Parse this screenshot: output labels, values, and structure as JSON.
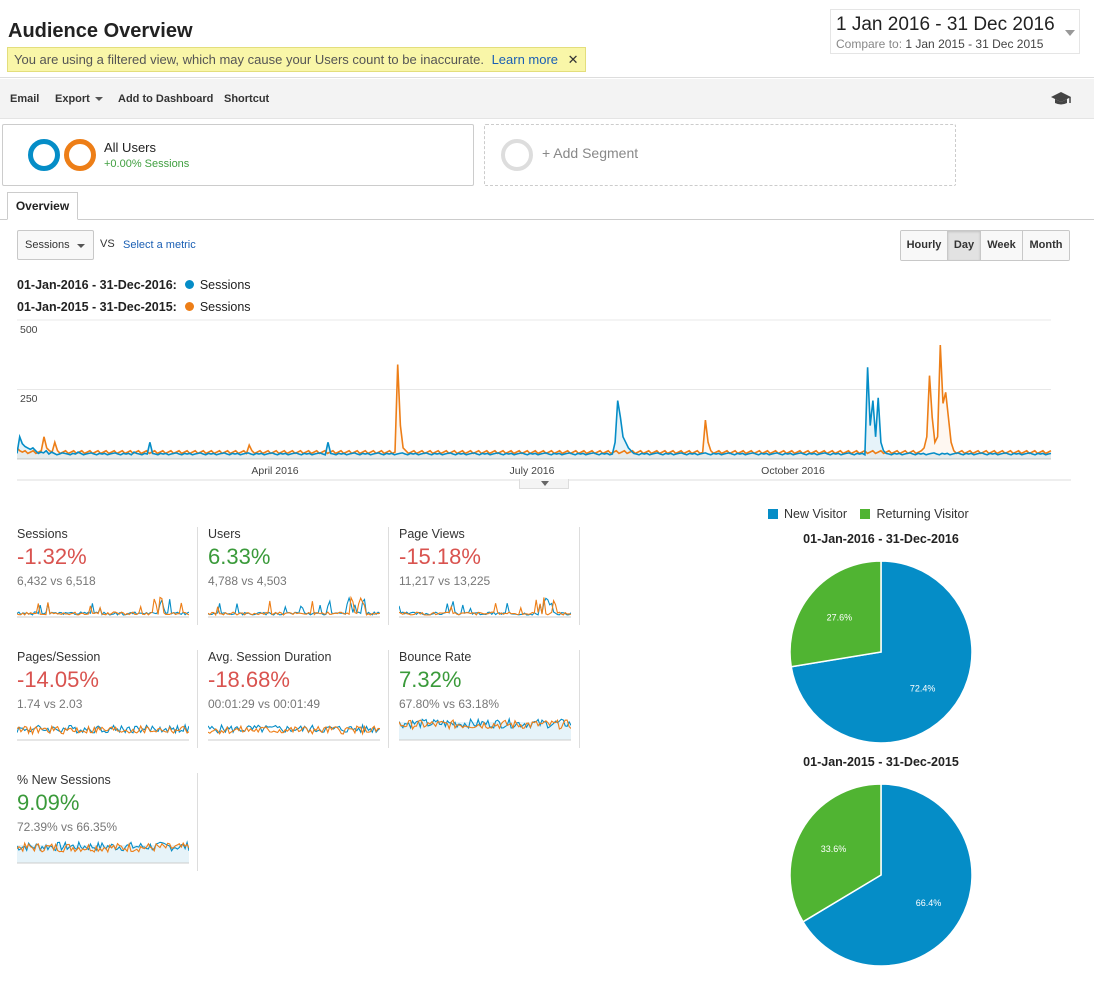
{
  "header": {
    "title": "Audience Overview",
    "warning_text": "You are using a filtered view, which may cause your Users count to be inaccurate.",
    "learn_more": "Learn more",
    "close": "✕",
    "date_range": "1 Jan 2016 - 31 Dec 2016",
    "compare_label": "Compare to:",
    "compare_range": "1 Jan 2015 - 31 Dec 2015"
  },
  "toolbar": {
    "email": "Email",
    "export": "Export",
    "add_to_dashboard": "Add to Dashboard",
    "shortcut": "Shortcut",
    "icon": "graduation-cap-icon"
  },
  "segments": {
    "all_users": "All Users",
    "all_users_sub": "+0.00% Sessions",
    "add_segment": "+ Add Segment"
  },
  "tabs": {
    "overview": "Overview"
  },
  "controls": {
    "metric": "Sessions",
    "vs": "VS",
    "select_metric": "Select a metric",
    "granularity": [
      "Hourly",
      "Day",
      "Week",
      "Month"
    ],
    "granularity_active": "Day"
  },
  "legend": [
    {
      "range": "01-Jan-2016 - 31-Dec-2016:",
      "metric": "Sessions",
      "color": "#058dc7"
    },
    {
      "range": "01-Jan-2015 - 31-Dec-2015:",
      "metric": "Sessions",
      "color": "#ed7e17"
    }
  ],
  "chart_data": [
    {
      "type": "line",
      "ylim": [
        0,
        500
      ],
      "y_ticks": [
        "500",
        "250"
      ],
      "x_ticks": [
        "April 2016",
        "July 2016",
        "October 2016"
      ],
      "series": [
        {
          "name": "01-Jan-2016 - 31-Dec-2016: Sessions",
          "color": "#058dc7",
          "values": [
            20,
            80,
            55,
            45,
            40,
            35,
            40,
            30,
            20,
            25,
            22,
            30,
            18,
            25,
            20,
            15,
            18,
            22,
            20,
            18,
            15,
            20,
            18,
            25,
            20,
            15,
            18,
            20,
            22,
            18,
            15,
            20,
            18,
            20,
            15,
            18,
            20,
            22,
            18,
            15,
            20,
            18,
            20,
            15,
            25,
            20,
            18,
            15,
            20,
            18,
            60,
            20,
            18,
            15,
            20,
            18,
            20,
            15,
            18,
            20,
            22,
            18,
            15,
            20,
            18,
            20,
            15,
            18,
            20,
            22,
            18,
            15,
            20,
            18,
            20,
            15,
            18,
            20,
            22,
            18,
            15,
            20,
            18,
            20,
            15,
            18,
            20,
            22,
            18,
            15,
            20,
            18,
            20,
            15,
            18,
            20,
            22,
            18,
            15,
            20,
            18,
            20,
            15,
            18,
            20,
            22,
            18,
            15,
            20,
            18,
            20,
            15,
            18,
            20,
            22,
            18,
            15,
            60,
            20,
            18,
            15,
            20,
            18,
            20,
            15,
            18,
            20,
            22,
            18,
            15,
            20,
            18,
            20,
            15,
            18,
            20,
            22,
            18,
            15,
            20,
            18,
            20,
            15,
            18,
            20,
            22,
            18,
            15,
            20,
            18,
            20,
            15,
            18,
            20,
            22,
            18,
            15,
            20,
            18,
            20,
            15,
            18,
            20,
            22,
            18,
            15,
            20,
            18,
            20,
            15,
            18,
            20,
            22,
            18,
            15,
            20,
            18,
            20,
            15,
            18,
            20,
            22,
            18,
            15,
            20,
            18,
            20,
            15,
            18,
            20,
            22,
            18,
            15,
            20,
            18,
            20,
            15,
            18,
            20,
            22,
            18,
            15,
            20,
            18,
            20,
            15,
            18,
            20,
            22,
            18,
            15,
            20,
            18,
            20,
            15,
            18,
            20,
            22,
            18,
            15,
            20,
            18,
            20,
            15,
            18,
            60,
            210,
            150,
            80,
            60,
            40,
            30,
            20,
            18,
            15,
            20,
            18,
            20,
            15,
            18,
            20,
            22,
            18,
            15,
            20,
            18,
            20,
            15,
            18,
            20,
            22,
            18,
            15,
            20,
            18,
            20,
            15,
            18,
            20,
            22,
            18,
            15,
            20,
            18,
            20,
            15,
            18,
            20,
            22,
            18,
            15,
            20,
            18,
            20,
            15,
            18,
            20,
            22,
            18,
            15,
            20,
            18,
            20,
            15,
            18,
            20,
            22,
            18,
            15,
            20,
            18,
            20,
            15,
            18,
            20,
            22,
            18,
            15,
            20,
            18,
            20,
            15,
            18,
            20,
            22,
            18,
            15,
            20,
            18,
            20,
            15,
            18,
            20,
            22,
            18,
            15,
            20,
            18,
            20,
            15,
            330,
            120,
            210,
            80,
            220,
            60,
            30,
            20,
            18,
            15,
            20,
            18,
            20,
            15,
            18,
            20,
            22,
            18,
            15,
            20,
            18,
            20,
            15,
            18,
            20,
            22,
            18,
            15,
            20,
            18,
            20,
            15,
            18,
            20,
            22,
            18,
            15,
            20,
            18,
            20,
            15,
            18,
            20,
            22,
            18,
            15,
            20,
            18,
            20,
            15,
            18,
            20,
            22,
            18,
            15,
            20,
            18,
            20,
            15,
            18,
            20,
            22,
            18,
            15,
            20,
            18,
            20,
            15,
            18,
            20
          ]
        },
        {
          "name": "01-Jan-2015 - 31-Dec-2015: Sessions",
          "color": "#ed7e17",
          "values": [
            40,
            30,
            25,
            30,
            20,
            25,
            30,
            20,
            25,
            30,
            80,
            40,
            30,
            25,
            60,
            30,
            20,
            25,
            30,
            20,
            25,
            30,
            20,
            25,
            30,
            20,
            25,
            30,
            20,
            25,
            30,
            20,
            25,
            30,
            20,
            25,
            30,
            20,
            25,
            30,
            20,
            25,
            30,
            20,
            25,
            30,
            20,
            25,
            30,
            20,
            25,
            30,
            20,
            25,
            30,
            20,
            25,
            30,
            20,
            25,
            30,
            20,
            25,
            30,
            20,
            25,
            30,
            20,
            25,
            30,
            20,
            25,
            30,
            20,
            25,
            30,
            20,
            25,
            30,
            20,
            25,
            30,
            20,
            25,
            30,
            20,
            50,
            30,
            20,
            25,
            30,
            20,
            25,
            30,
            20,
            25,
            30,
            20,
            25,
            30,
            20,
            25,
            30,
            20,
            25,
            30,
            20,
            25,
            30,
            20,
            25,
            30,
            20,
            25,
            30,
            20,
            25,
            30,
            20,
            25,
            30,
            20,
            25,
            30,
            20,
            25,
            30,
            20,
            25,
            30,
            20,
            25,
            30,
            20,
            25,
            30,
            20,
            25,
            30,
            20,
            25,
            340,
            120,
            40,
            30,
            20,
            25,
            30,
            20,
            25,
            30,
            20,
            25,
            30,
            20,
            25,
            30,
            20,
            25,
            30,
            20,
            25,
            30,
            20,
            25,
            30,
            20,
            25,
            30,
            20,
            25,
            30,
            20,
            25,
            30,
            20,
            25,
            30,
            20,
            25,
            30,
            20,
            25,
            30,
            20,
            25,
            30,
            20,
            25,
            30,
            20,
            25,
            30,
            20,
            25,
            30,
            20,
            25,
            30,
            20,
            25,
            30,
            20,
            25,
            30,
            20,
            25,
            30,
            20,
            25,
            30,
            20,
            25,
            30,
            20,
            25,
            30,
            20,
            25,
            30,
            20,
            25,
            30,
            20,
            25,
            30,
            20,
            25,
            30,
            20,
            25,
            30,
            20,
            25,
            30,
            20,
            25,
            30,
            20,
            25,
            30,
            20,
            25,
            30,
            20,
            25,
            30,
            20,
            25,
            30,
            20,
            25,
            30,
            20,
            25,
            140,
            60,
            30,
            20,
            25,
            30,
            20,
            25,
            30,
            20,
            25,
            30,
            20,
            25,
            30,
            20,
            25,
            30,
            20,
            25,
            30,
            20,
            25,
            30,
            20,
            25,
            30,
            20,
            25,
            30,
            20,
            25,
            30,
            20,
            25,
            30,
            20,
            25,
            30,
            20,
            25,
            30,
            20,
            25,
            30,
            20,
            25,
            30,
            20,
            25,
            30,
            20,
            25,
            30,
            20,
            25,
            30,
            20,
            25,
            30,
            20,
            25,
            30,
            20,
            25,
            30,
            20,
            25,
            30,
            20,
            25,
            30,
            20,
            25,
            30,
            20,
            25,
            30,
            20,
            25,
            30,
            40,
            80,
            300,
            150,
            60,
            80,
            410,
            200,
            240,
            150,
            60,
            30,
            20,
            25,
            30,
            20,
            25,
            30,
            20,
            25,
            30,
            20,
            25,
            30,
            20,
            25,
            30,
            20,
            25,
            30,
            20,
            25,
            30,
            20,
            25,
            30,
            20,
            25,
            30,
            20,
            25,
            30,
            20,
            25,
            30,
            20,
            25,
            30
          ]
        }
      ]
    },
    {
      "type": "pie",
      "title": "01-Jan-2016 - 31-Dec-2016",
      "categories": [
        "New Visitor",
        "Returning Visitor"
      ],
      "values": [
        72.4,
        27.6
      ],
      "labels": [
        "72.4%",
        "27.6%"
      ],
      "colors": [
        "#058dc7",
        "#50b432"
      ]
    },
    {
      "type": "pie",
      "title": "01-Jan-2015 - 31-Dec-2015",
      "categories": [
        "New Visitor",
        "Returning Visitor"
      ],
      "values": [
        66.4,
        33.6
      ],
      "labels": [
        "66.4%",
        "33.6%"
      ],
      "colors": [
        "#058dc7",
        "#50b432"
      ]
    }
  ],
  "scorecards": [
    {
      "name": "sessions",
      "label": "Sessions",
      "change": "-1.32%",
      "direction": "neg",
      "compare": "6,432 vs 6,518",
      "spark": "spiky"
    },
    {
      "name": "users",
      "label": "Users",
      "change": "6.33%",
      "direction": "pos",
      "compare": "4,788 vs 4,503",
      "spark": "spiky"
    },
    {
      "name": "page-views",
      "label": "Page Views",
      "change": "-15.18%",
      "direction": "neg",
      "compare": "11,217 vs 13,225",
      "spark": "spiky"
    },
    {
      "name": "pages-per-session",
      "label": "Pages/Session",
      "change": "-14.05%",
      "direction": "neg",
      "compare": "1.74 vs 2.03",
      "spark": "noisy"
    },
    {
      "name": "avg-session-duration",
      "label": "Avg. Session Duration",
      "change": "-18.68%",
      "direction": "neg",
      "compare": "00:01:29 vs 00:01:49",
      "spark": "noisy"
    },
    {
      "name": "bounce-rate",
      "label": "Bounce Rate",
      "change": "7.32%",
      "direction": "pos",
      "compare": "67.80% vs 63.18%",
      "spark": "band"
    },
    {
      "name": "new-sessions",
      "label": "% New Sessions",
      "change": "9.09%",
      "direction": "pos",
      "compare": "72.39% vs 66.35%",
      "spark": "band"
    }
  ],
  "pie_legend": [
    {
      "label": "New Visitor",
      "color": "#058dc7"
    },
    {
      "label": "Returning Visitor",
      "color": "#50b432"
    }
  ]
}
